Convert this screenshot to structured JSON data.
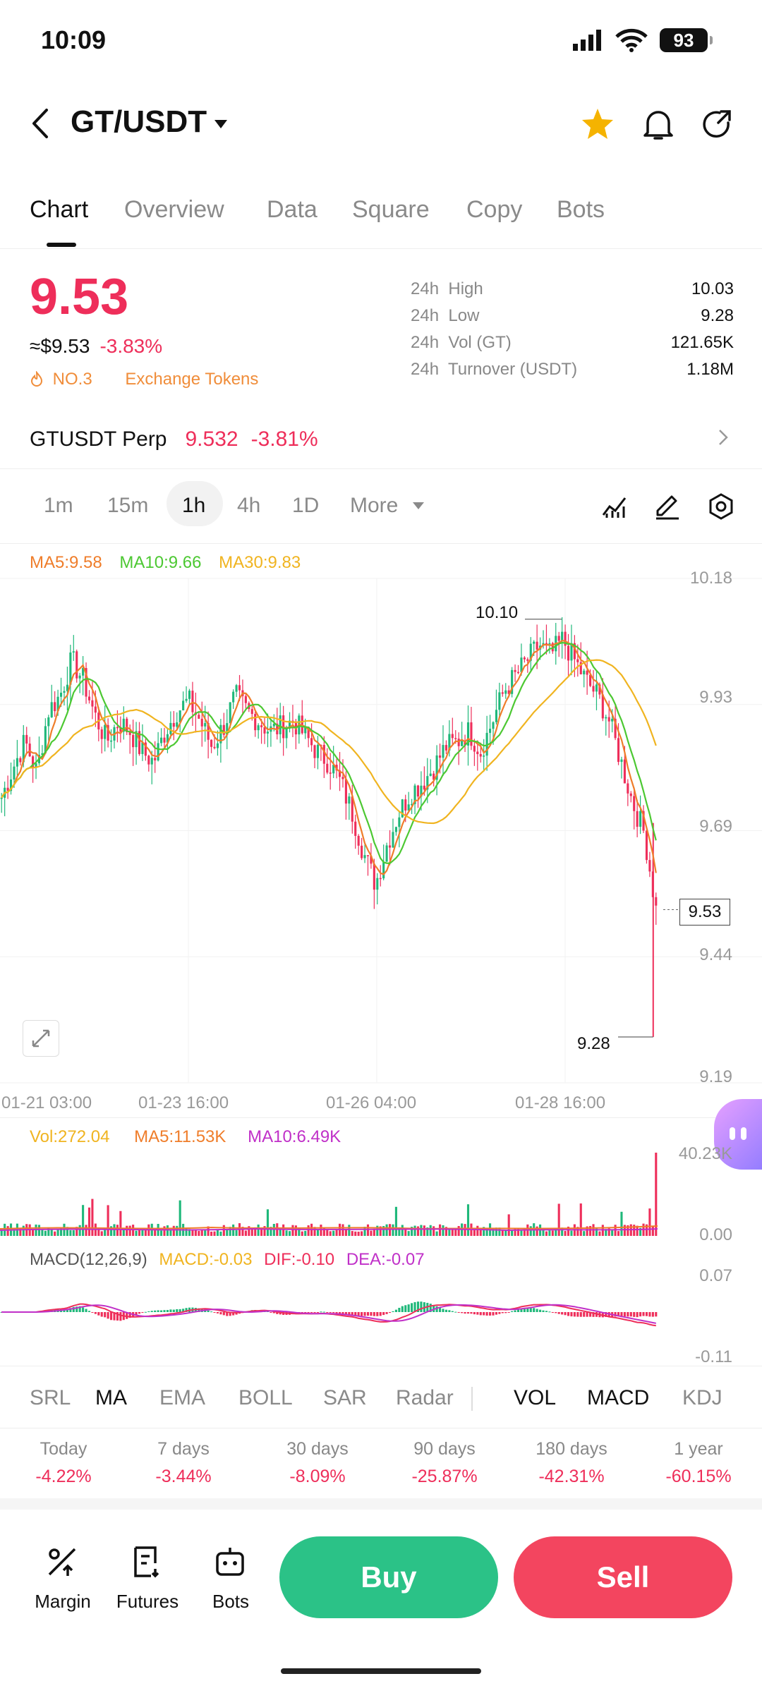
{
  "status": {
    "time": "10:09",
    "battery": "93"
  },
  "header": {
    "pair": "GT/USDT"
  },
  "tabs": [
    {
      "label": "Chart",
      "active": true
    },
    {
      "label": "Overview"
    },
    {
      "label": "Data"
    },
    {
      "label": "Square"
    },
    {
      "label": "Copy"
    },
    {
      "label": "Bots"
    }
  ],
  "price": {
    "last": "9.53",
    "fiat": "≈$9.53",
    "change": "-3.83%",
    "rank": "NO.3",
    "category": "Exchange Tokens"
  },
  "stats": [
    {
      "period": "24h",
      "label": "High",
      "value": "10.03"
    },
    {
      "period": "24h",
      "label": "Low",
      "value": "9.28"
    },
    {
      "period": "24h",
      "label": "Vol (GT)",
      "value": "121.65K"
    },
    {
      "period": "24h",
      "label": "Turnover (USDT)",
      "value": "1.18M"
    }
  ],
  "perp": {
    "name": "GTUSDT Perp",
    "price": "9.532",
    "change": "-3.81%"
  },
  "timeframes": [
    "1m",
    "15m",
    "1h",
    "4h",
    "1D",
    "More"
  ],
  "active_timeframe": "1h",
  "ma": {
    "ma5": "MA5:9.58",
    "ma10": "MA10:9.66",
    "ma30": "MA30:9.83"
  },
  "chart_data": {
    "type": "candlestick",
    "y_ticks": [
      "10.18",
      "9.93",
      "9.69",
      "9.44",
      "9.19"
    ],
    "ylim": [
      9.19,
      10.18
    ],
    "x_ticks": [
      "01-21 03:00",
      "01-23 16:00",
      "01-26 04:00",
      "01-28 16:00"
    ],
    "high_label": "10.10",
    "low_label": "9.28",
    "last_label": "9.53",
    "close_path": [
      9.75,
      9.81,
      9.86,
      9.8,
      9.92,
      9.95,
      10.02,
      9.98,
      9.91,
      9.86,
      9.9,
      9.88,
      9.84,
      9.82,
      9.88,
      9.92,
      9.94,
      9.9,
      9.85,
      9.89,
      9.95,
      9.92,
      9.9,
      9.88,
      9.89,
      9.9,
      9.87,
      9.84,
      9.82,
      9.78,
      9.72,
      9.64,
      9.58,
      9.66,
      9.72,
      9.76,
      9.78,
      9.81,
      9.85,
      9.86,
      9.88,
      9.84,
      9.9,
      9.96,
      9.99,
      10.02,
      10.05,
      10.03,
      10.06,
      10.02,
      9.98,
      9.95,
      9.9,
      9.82,
      9.74,
      9.68,
      9.53
    ],
    "colors": {
      "up": "#1fb87a",
      "down": "#ee2e5a",
      "ma5": "#ef7d2a",
      "ma10": "#4cc832",
      "ma30": "#f0b420"
    }
  },
  "volume": {
    "vol": "Vol:272.04",
    "ma5": "MA5:11.53K",
    "ma10": "MA10:6.49K",
    "y_ticks": [
      "40.23K",
      "0.00"
    ]
  },
  "macd": {
    "label": "MACD(12,26,9)",
    "macd": "MACD:-0.03",
    "dif": "DIF:-0.10",
    "dea": "DEA:-0.07",
    "y_ticks": [
      "0.07",
      "-0.11"
    ]
  },
  "indicators_main": [
    "SRL",
    "MA",
    "EMA",
    "BOLL",
    "SAR",
    "Radar"
  ],
  "indicators_sub": [
    "VOL",
    "MACD",
    "KDJ"
  ],
  "performance": [
    {
      "label": "Today",
      "value": "-4.22%"
    },
    {
      "label": "7 days",
      "value": "-3.44%"
    },
    {
      "label": "30 days",
      "value": "-8.09%"
    },
    {
      "label": "90 days",
      "value": "-25.87%"
    },
    {
      "label": "180 days",
      "value": "-42.31%"
    },
    {
      "label": "1 year",
      "value": "-60.15%"
    }
  ],
  "bottom": {
    "margin": "Margin",
    "futures": "Futures",
    "bots": "Bots",
    "buy": "Buy",
    "sell": "Sell"
  }
}
